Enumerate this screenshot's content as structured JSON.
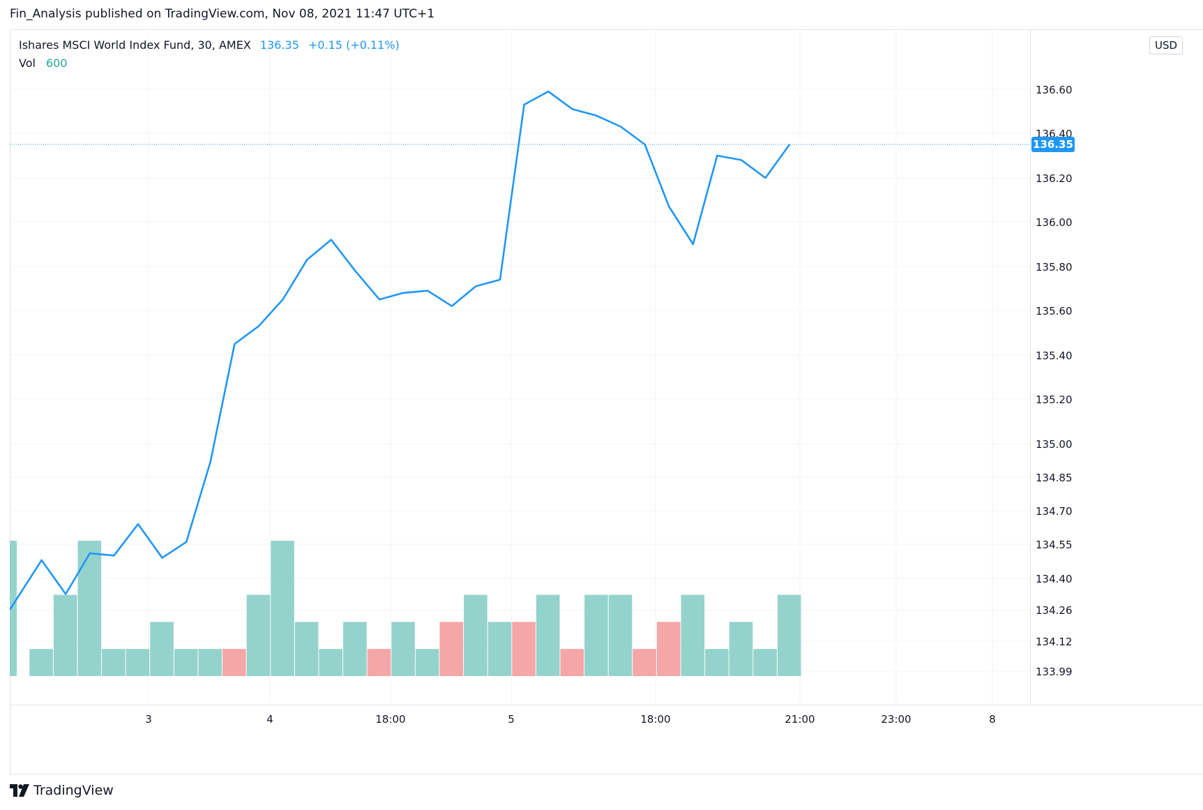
{
  "header": {
    "published_line": "Fin_Analysis published on TradingView.com, Nov 08, 2021 11:47 UTC+1"
  },
  "legend": {
    "symbol": "Ishares MSCI World Index Fund, 30, AMEX",
    "last_price": "136.35",
    "change": "+0.15 (+0.11%)",
    "volume_label": "Vol",
    "volume_value": "600"
  },
  "currency_label": "USD",
  "last_price_badge": "136.35",
  "footer": {
    "brand": "TradingView"
  },
  "colors": {
    "line": "#2196f3",
    "volume_up": "#94d3cb",
    "volume_down": "#f5a6a6",
    "grid": "#f0f3fa",
    "badge": "#2196f3"
  },
  "chart_data": {
    "type": "line",
    "x_tick_labels": [
      "3",
      "4",
      "18:00",
      "5",
      "18:00",
      "21:00",
      "23:00",
      "8"
    ],
    "y_tick_labels": [
      "136.60",
      "136.40",
      "136.20",
      "136.00",
      "135.80",
      "135.60",
      "135.40",
      "135.20",
      "135.00",
      "134.85",
      "134.70",
      "134.55",
      "134.40",
      "134.26",
      "134.12",
      "133.99"
    ],
    "series": [
      {
        "values": [
          134.26,
          134.48,
          134.33,
          134.51,
          134.5,
          134.64,
          134.49,
          134.56,
          134.92,
          135.45,
          135.53,
          135.65,
          135.83,
          135.92,
          135.78,
          135.65,
          135.68,
          135.69,
          135.62,
          135.71,
          135.74,
          136.53,
          136.59,
          136.51,
          136.48,
          136.43,
          136.35,
          136.07,
          135.9,
          136.3,
          136.28,
          136.2,
          136.35
        ]
      }
    ],
    "volume": {
      "values": [
        5,
        1,
        3,
        5,
        1,
        1,
        2,
        1,
        1,
        1,
        3,
        5,
        2,
        1,
        2,
        1,
        2,
        1,
        2,
        3,
        2,
        2,
        3,
        1,
        3,
        3,
        1,
        2,
        3,
        1,
        2,
        1,
        3
      ],
      "direction": [
        "up",
        "up",
        "up",
        "up",
        "up",
        "up",
        "up",
        "up",
        "up",
        "down",
        "up",
        "up",
        "up",
        "up",
        "up",
        "down",
        "up",
        "up",
        "down",
        "up",
        "up",
        "down",
        "up",
        "down",
        "up",
        "up",
        "down",
        "down",
        "up",
        "up",
        "up",
        "up",
        "up"
      ]
    },
    "ylim": [
      133.99,
      136.7
    ],
    "current_price": 136.35,
    "grid": true
  }
}
